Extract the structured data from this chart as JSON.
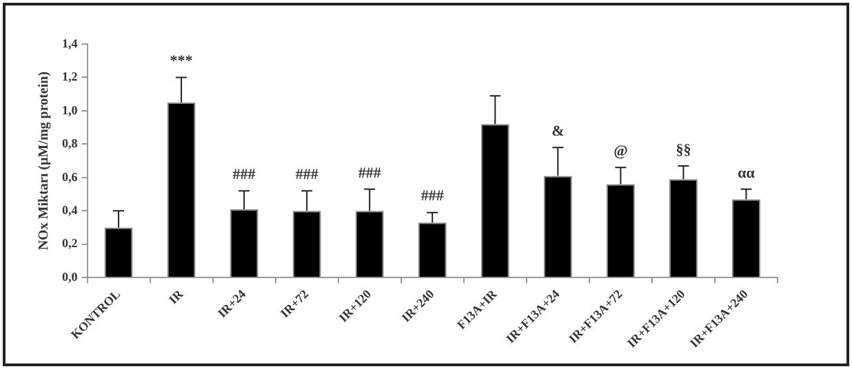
{
  "chart_data": {
    "type": "bar",
    "ylabel": "NOx Miktarı (µM/mg protein)",
    "categories": [
      "KONTROL",
      "IR",
      "IR+24",
      "IR+72",
      "IR+120",
      "IR+240",
      "F13A+IR",
      "IR+F13A+24",
      "IR+F13A+72",
      "IR+F13A+120",
      "IR+F13A+240"
    ],
    "values": [
      0.3,
      1.05,
      0.41,
      0.4,
      0.4,
      0.33,
      0.92,
      0.61,
      0.56,
      0.59,
      0.47
    ],
    "errors": [
      [
        0.3,
        0.4
      ],
      [
        1.05,
        1.2
      ],
      [
        0.41,
        0.52
      ],
      [
        0.4,
        0.52
      ],
      [
        0.4,
        0.53
      ],
      [
        0.33,
        0.39
      ],
      [
        0.92,
        1.09
      ],
      [
        0.61,
        0.78
      ],
      [
        0.56,
        0.66
      ],
      [
        0.59,
        0.67
      ],
      [
        0.47,
        0.53
      ]
    ],
    "color": "#000000",
    "ylim": [
      0,
      1.4
    ],
    "yticks": [
      {
        "value": 0,
        "label": "0,0"
      },
      {
        "value": 0.2,
        "label": "0,2"
      },
      {
        "value": 0.4,
        "label": "0,4"
      },
      {
        "value": 0.6,
        "label": "0,6"
      },
      {
        "value": 0.8,
        "label": "0,8"
      },
      {
        "value": 1.0,
        "label": "1,0"
      },
      {
        "value": 1.2,
        "label": "1,2"
      },
      {
        "value": 1.4,
        "label": "1,4"
      }
    ],
    "annotations": [
      {
        "text": "***",
        "x": "IR",
        "y": 1.2
      },
      {
        "text": "###",
        "x": "IR+24",
        "y": 0.52
      },
      {
        "text": "###",
        "x": "IR+72",
        "y": 0.52
      },
      {
        "text": "###",
        "x": "IR+120",
        "y": 0.53
      },
      {
        "text": "###",
        "x": "IR+240",
        "y": 0.39
      },
      {
        "text": "&",
        "x": "IR+F13A+24",
        "y": 0.78
      },
      {
        "text": "@",
        "x": "IR+F13A+72",
        "y": 0.66
      },
      {
        "text": "§§",
        "x": "IR+F13A+120",
        "y": 0.67
      },
      {
        "text": "αα",
        "x": "IR+F13A+240",
        "y": 0.53
      }
    ],
    "grid": false,
    "legend": false
  }
}
